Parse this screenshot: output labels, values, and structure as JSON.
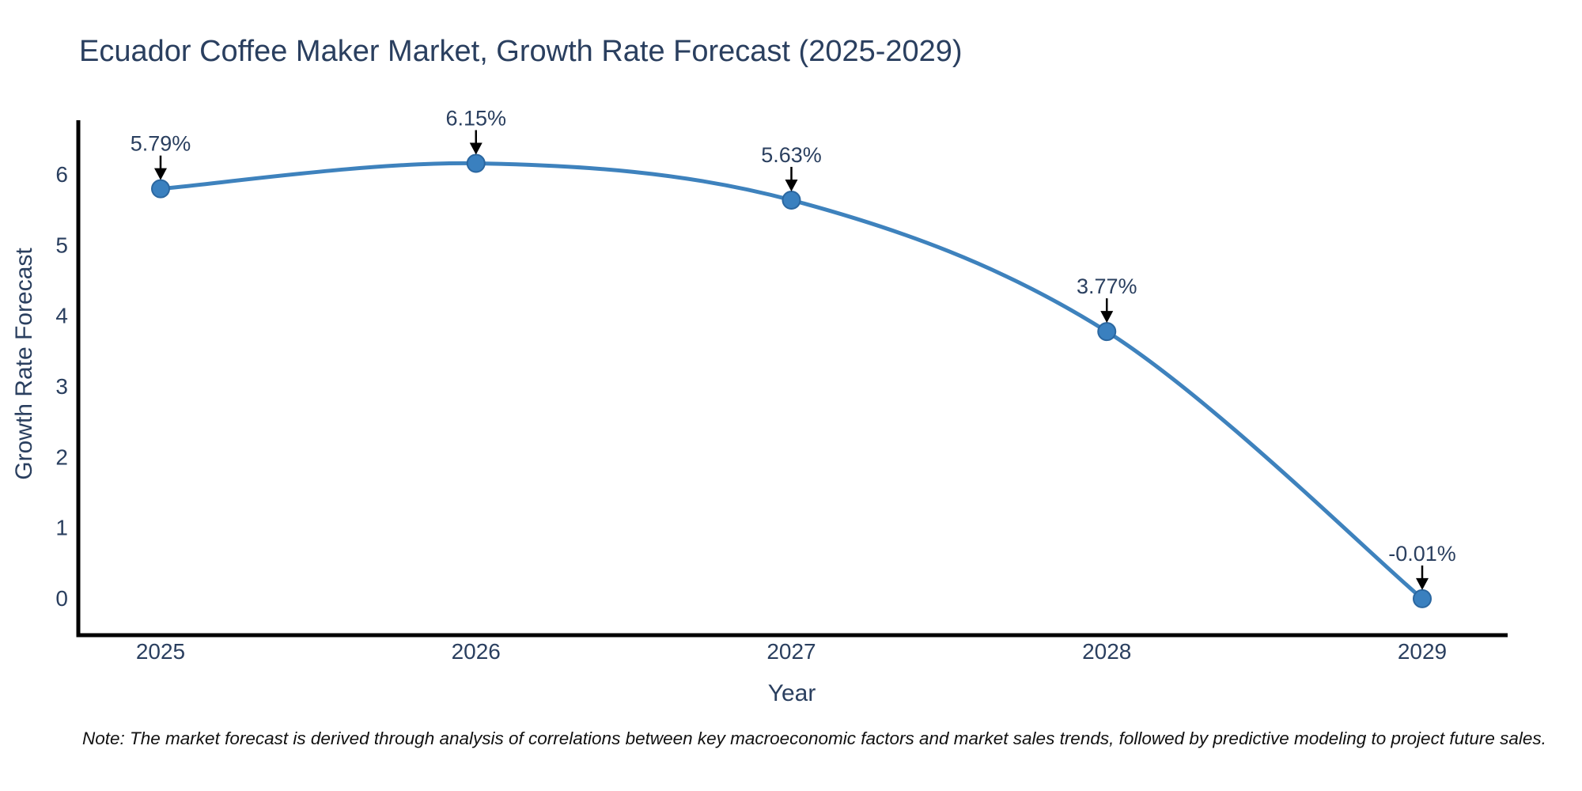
{
  "chart_data": {
    "type": "line",
    "title": "Ecuador Coffee Maker Market, Growth Rate Forecast (2025-2029)",
    "xlabel": "Year",
    "ylabel": "Growth Rate Forecast",
    "categories": [
      "2025",
      "2026",
      "2027",
      "2028",
      "2029"
    ],
    "series": [
      {
        "name": "Growth Rate Forecast",
        "values": [
          5.79,
          6.15,
          5.63,
          3.77,
          -0.01
        ]
      }
    ],
    "point_labels": [
      "5.79%",
      "6.15%",
      "5.63%",
      "3.77%",
      "-0.01%"
    ],
    "yticks": [
      0,
      1,
      2,
      3,
      4,
      5,
      6
    ],
    "ylim": [
      -0.57,
      6.76
    ],
    "grid": false,
    "legend_position": "none",
    "curve": "spline",
    "colors": {
      "line": "#3e82bd",
      "marker_fill": "#3a80bf",
      "marker_edge": "#2b67a0",
      "axis_line": "#000000",
      "annotation_arrow": "#000000",
      "text": "#2a3f5f"
    }
  },
  "note": "Note: The market forecast is derived through analysis of correlations between key macroeconomic factors and market sales trends, followed by predictive modeling to project future sales."
}
